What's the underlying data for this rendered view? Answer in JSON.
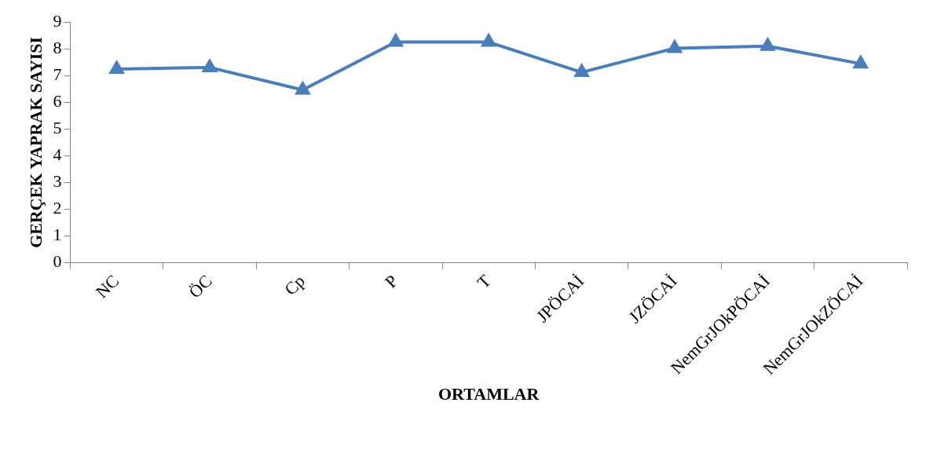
{
  "chart_data": {
    "type": "line",
    "xlabel": "ORTAMLAR",
    "ylabel": "GERÇEK YAPRAK SAYISI",
    "categories": [
      "NC",
      "ÖC",
      "Cp",
      "P",
      "T",
      "JPÖCAİ",
      "JZÖCAİ",
      "NemGrJOkPÖCAİ",
      "NemGrJOkZÖCAİ"
    ],
    "series": [
      {
        "color": "#4a7ebb",
        "values": [
          7.24,
          7.3,
          6.46,
          8.25,
          8.25,
          7.12,
          8.02,
          8.1,
          7.44
        ]
      }
    ],
    "ylim": [
      0,
      9
    ],
    "yticks": [
      0,
      1,
      2,
      3,
      4,
      5,
      6,
      7,
      8,
      9
    ],
    "grid": false,
    "marker": "triangle",
    "line_style": "solid"
  }
}
